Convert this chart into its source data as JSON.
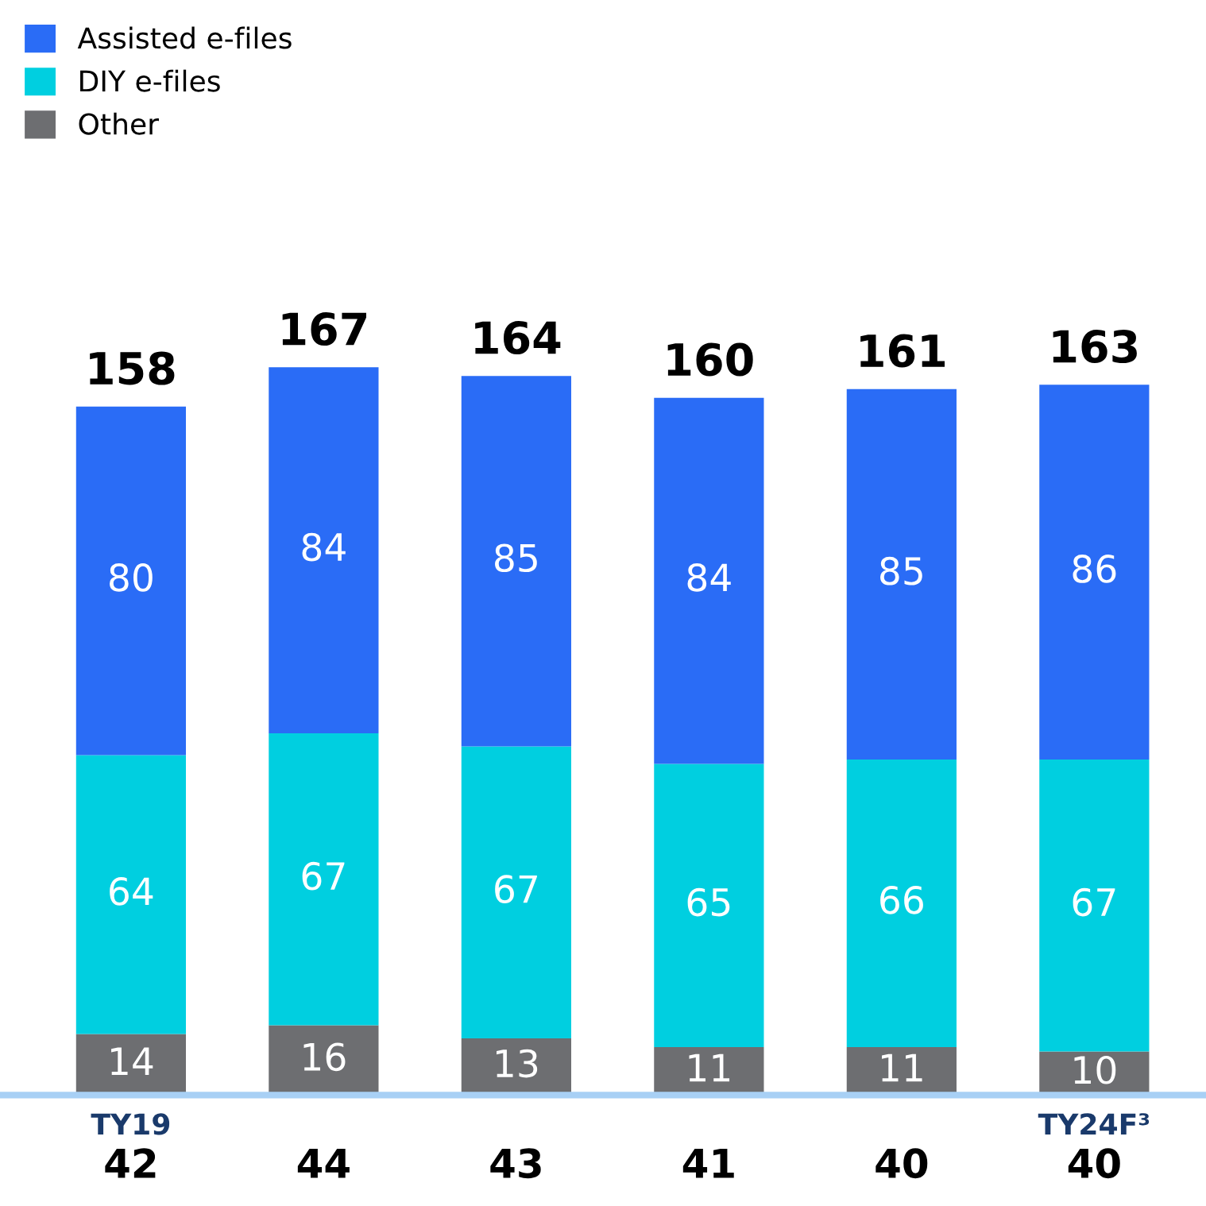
{
  "chart_data": {
    "type": "bar",
    "stacked": true,
    "categories": [
      "TY19",
      null,
      null,
      null,
      null,
      "TY24F³"
    ],
    "series": [
      {
        "name": "Other",
        "color": "#6d6e71",
        "values": [
          14,
          16,
          13,
          11,
          11,
          10
        ]
      },
      {
        "name": "DIY e-files",
        "color": "#00cfe0",
        "values": [
          64,
          67,
          67,
          65,
          66,
          67
        ]
      },
      {
        "name": "Assisted e-files",
        "color": "#2a6cf6",
        "values": [
          80,
          84,
          85,
          84,
          85,
          86
        ]
      }
    ],
    "data_labels": true,
    "totals": [
      "158",
      "167",
      "164",
      "160",
      "161",
      "163"
    ],
    "annotations": [
      "42",
      "44",
      "43",
      "41",
      "40",
      "40"
    ],
    "legend": "top left",
    "grid": false
  }
}
